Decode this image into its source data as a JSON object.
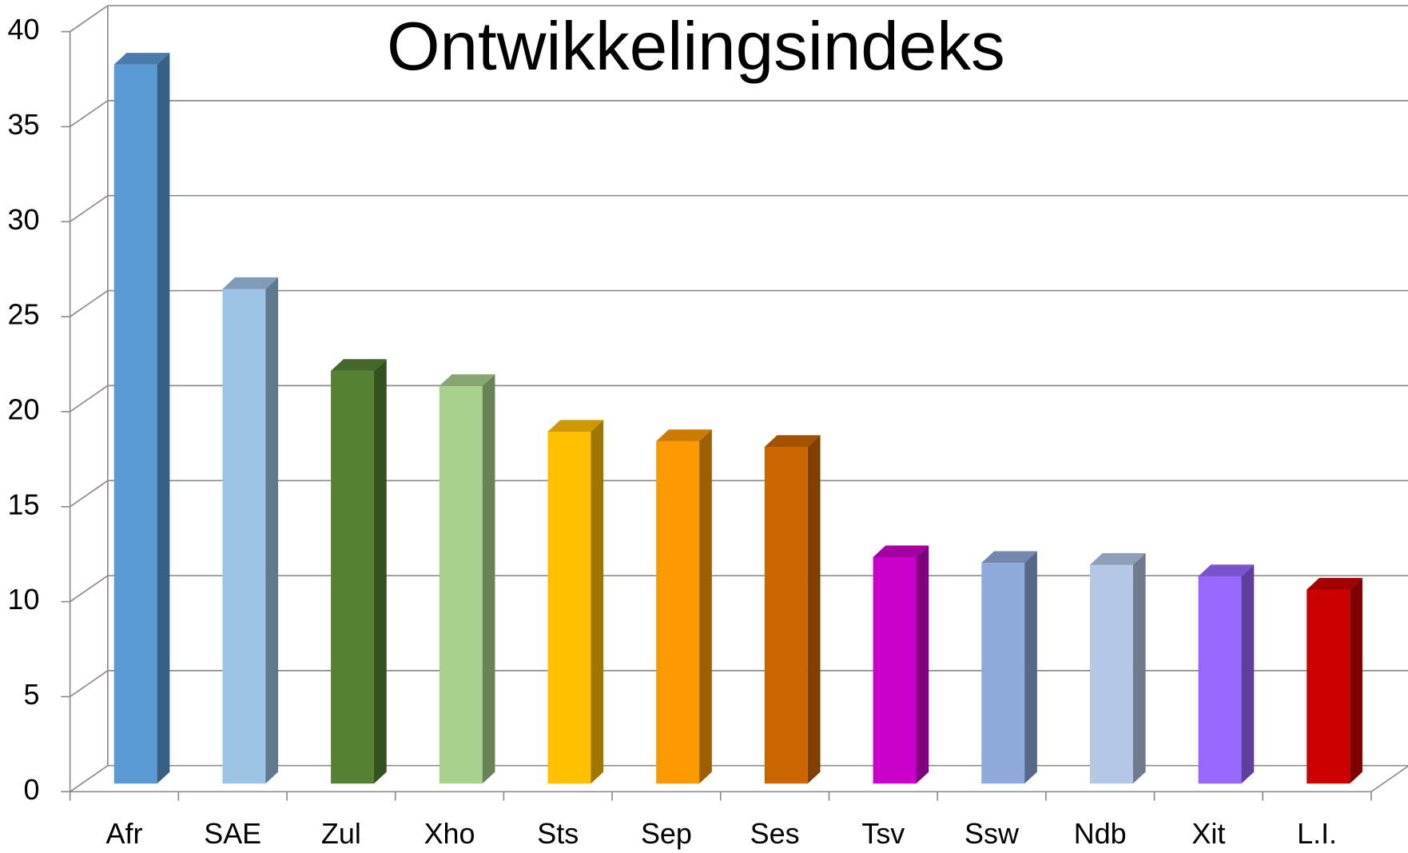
{
  "chart_data": {
    "type": "bar3d",
    "title": "Ontwikkelingsindeks",
    "categories": [
      "Afr",
      "SAE",
      "Zul",
      "Xho",
      "Sts",
      "Sep",
      "Ses",
      "Tsv",
      "Ssw",
      "Ndb",
      "Xit",
      "L.I."
    ],
    "values": [
      37.8,
      26.0,
      21.7,
      20.9,
      18.5,
      18.0,
      17.7,
      11.9,
      11.6,
      11.5,
      10.9,
      10.2
    ],
    "colors": [
      "#5b9bd5",
      "#9dc3e6",
      "#548235",
      "#a9d18e",
      "#ffc000",
      "#ff9900",
      "#cc6600",
      "#cc00cc",
      "#8eaadb",
      "#b4c7e7",
      "#9966ff",
      "#cc0000"
    ],
    "ylim": [
      0,
      40
    ],
    "yticks": [
      0,
      5,
      10,
      15,
      20,
      25,
      30,
      35,
      40
    ],
    "grid": true
  }
}
